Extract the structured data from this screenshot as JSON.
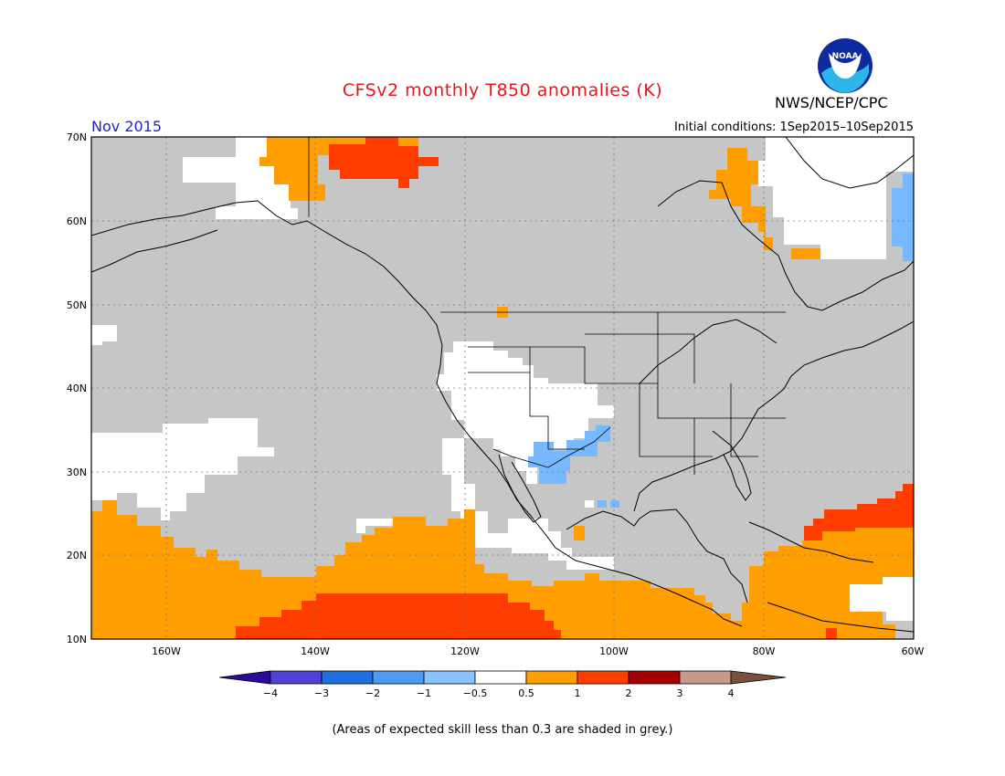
{
  "title": "CFSv2 monthly T850 anomalies (K)",
  "agency": "NWS/NCEP/CPC",
  "logo_text": "NOAA",
  "month_label": "Nov 2015",
  "initial_conditions": "Initial conditions: 1Sep2015–10Sep2015",
  "footnote": "(Areas of expected skill less than 0.3 are shaded in grey.)",
  "map": {
    "lon_range": [
      -170,
      -60
    ],
    "lat_range": [
      10,
      70
    ],
    "lat_labels": [
      "70N",
      "60N",
      "50N",
      "40N",
      "30N",
      "20N",
      "10N"
    ],
    "lon_labels": [
      "160W",
      "140W",
      "120W",
      "100W",
      "80W",
      "60W"
    ],
    "colors": {
      "low_skill_grey": "#c6c6c6",
      "near_zero_white": "#ffffff",
      "warm_0_5_1": "#ff9e00",
      "warm_1_2": "#ff3d00",
      "cool_neg_0_5": "#78b8ff"
    }
  },
  "colorbar": {
    "labels": [
      "−4",
      "−3",
      "−2",
      "−1",
      "−0.5",
      "0.5",
      "1",
      "2",
      "3",
      "4"
    ],
    "colors": [
      "#2c0a9a",
      "#4f43d6",
      "#1f6fe0",
      "#4e9cf2",
      "#8cc2ff",
      "#ffffff",
      "#ff9e00",
      "#ff3d00",
      "#a40000",
      "#c49a8a",
      "#78503d"
    ]
  }
}
